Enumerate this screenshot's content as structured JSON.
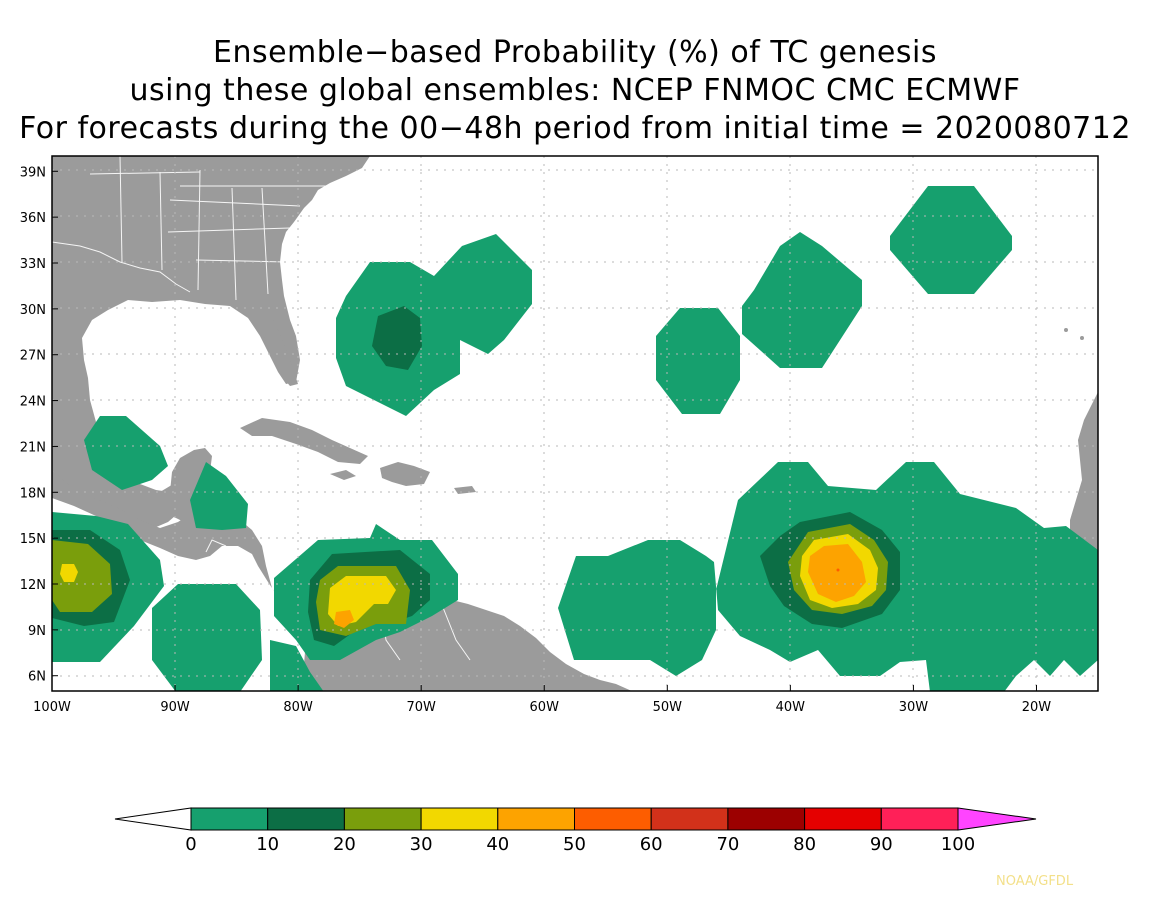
{
  "title": {
    "line1": "Ensemble−based Probability (%) of TC genesis",
    "line2": "using these global ensembles:   NCEP FNMOC CMC ECMWF",
    "line3": "For forecasts during the 00−48h period from initial time = 2020080712"
  },
  "map": {
    "lon_range": [
      -100,
      -15
    ],
    "lat_range": [
      5,
      40
    ],
    "lat_ticks": [
      {
        "value": 39,
        "label": "39N"
      },
      {
        "value": 36,
        "label": "36N"
      },
      {
        "value": 33,
        "label": "33N"
      },
      {
        "value": 30,
        "label": "30N"
      },
      {
        "value": 27,
        "label": "27N"
      },
      {
        "value": 24,
        "label": "24N"
      },
      {
        "value": 21,
        "label": "21N"
      },
      {
        "value": 18,
        "label": "18N"
      },
      {
        "value": 15,
        "label": "15N"
      },
      {
        "value": 12,
        "label": "12N"
      },
      {
        "value": 9,
        "label": "9N"
      },
      {
        "value": 6,
        "label": "6N"
      }
    ],
    "lon_ticks": [
      {
        "value": -100,
        "label": "100W"
      },
      {
        "value": -90,
        "label": "90W"
      },
      {
        "value": -80,
        "label": "80W"
      },
      {
        "value": -70,
        "label": "70W"
      },
      {
        "value": -60,
        "label": "60W"
      },
      {
        "value": -50,
        "label": "50W"
      },
      {
        "value": -40,
        "label": "40W"
      },
      {
        "value": -30,
        "label": "30W"
      },
      {
        "value": -20,
        "label": "20W"
      }
    ],
    "colors": {
      "land": "#9b9b9b",
      "ocean": "#ffffff",
      "grid": "#b8b8b8",
      "border": "#ffffff"
    }
  },
  "legend": {
    "labels": [
      "0",
      "10",
      "20",
      "30",
      "40",
      "50",
      "60",
      "70",
      "80",
      "90",
      "100"
    ],
    "colors": [
      "#16a06e",
      "#0c6e45",
      "#7a9e0c",
      "#f2d800",
      "#fda300",
      "#fd5d00",
      "#d2311a",
      "#9c0000",
      "#e50000",
      "#ff2058"
    ],
    "below_color": "#ffffff",
    "above_color": "#ff44ff"
  },
  "credit": "NOAA/GFDL"
}
